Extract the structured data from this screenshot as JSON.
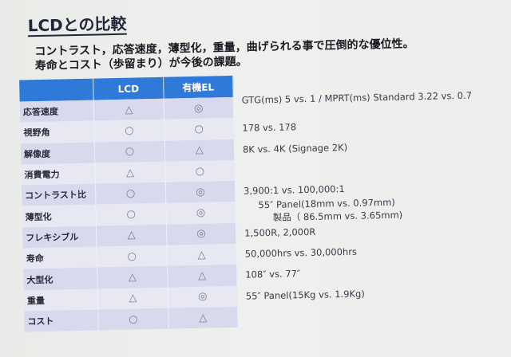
{
  "title": "LCDとの比較",
  "subtitle_lines": [
    "コントラスト，応答速度，薄型化，重量，曲げられる事で圧倒的な優位性。",
    "寿命とコスト（歩留まり）が今後の課題。"
  ],
  "table": {
    "headers": [
      "",
      "LCD",
      "有機EL"
    ],
    "rows": [
      {
        "label": "応答速度",
        "lcd": "△",
        "oled": "◎",
        "note": "GTG(ms) 5 vs. 1 / MPRT(ms) Standard 3.22 vs. 0.7"
      },
      {
        "label": "視野角",
        "lcd": "○",
        "oled": "○",
        "note": "178 vs. 178"
      },
      {
        "label": "解像度",
        "lcd": "○",
        "oled": "△",
        "note": "8K vs. 4K (Signage 2K)"
      },
      {
        "label": "消費電力",
        "lcd": "△",
        "oled": "○",
        "note": ""
      },
      {
        "label": "コントラスト比",
        "lcd": "○",
        "oled": "◎",
        "note": "3,900:1 vs. 100,000:1"
      },
      {
        "label": "薄型化",
        "lcd": "○",
        "oled": "◎",
        "note": "55″ Panel(18mm vs. 0.97mm)",
        "note2": "製品（ 86.5mm vs. 3.65mm)"
      },
      {
        "label": "フレキシブル",
        "lcd": "△",
        "oled": "◎",
        "note": "1,500R, 2,000R"
      },
      {
        "label": "寿命",
        "lcd": "○",
        "oled": "△",
        "note": "50,000hrs vs. 30,000hrs"
      },
      {
        "label": "大型化",
        "lcd": "△",
        "oled": "△",
        "note": "108″ vs. 77″"
      },
      {
        "label": "重量",
        "lcd": "△",
        "oled": "◎",
        "note": "55″ Panel(15Kg vs. 1.9Kg)"
      },
      {
        "label": "コスト",
        "lcd": "○",
        "oled": "△",
        "note": ""
      }
    ]
  },
  "colors": {
    "header_blue": "#2f79d9",
    "row_lavender": "#d9d9ee",
    "row_light": "#e7e8f2"
  }
}
